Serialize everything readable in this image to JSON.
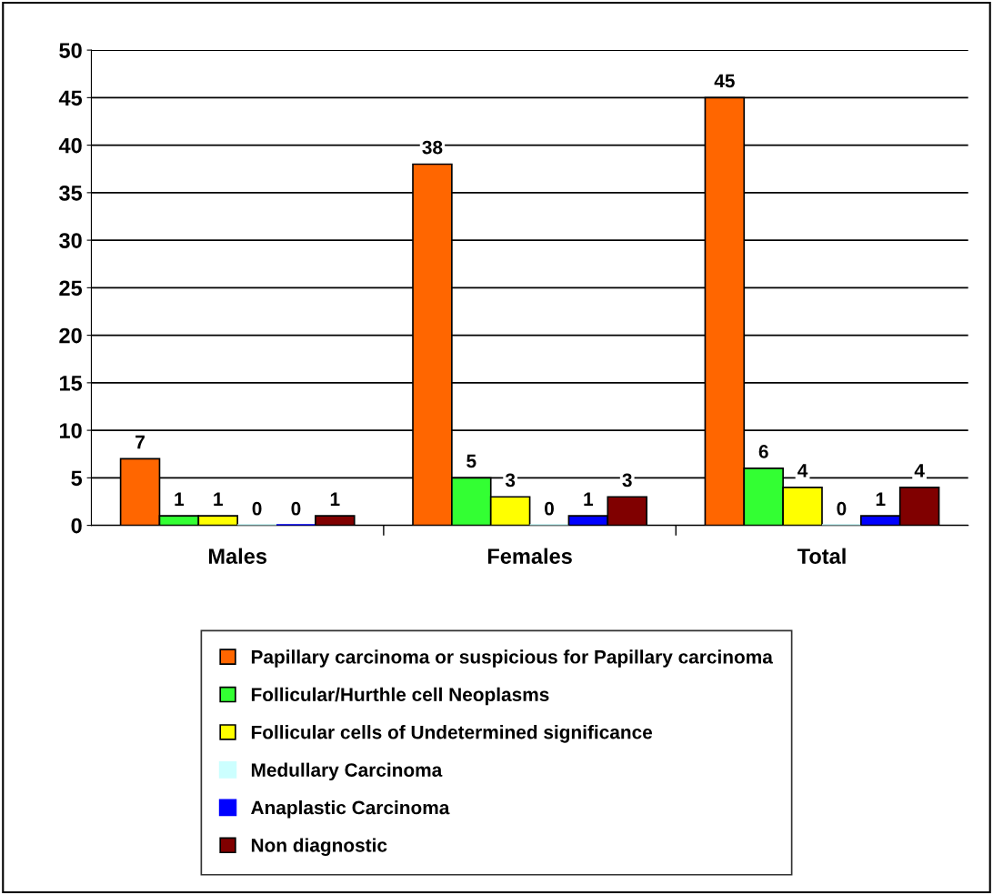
{
  "chart_data": {
    "type": "bar",
    "categories": [
      "Males",
      "Females",
      "Total"
    ],
    "series": [
      {
        "name": "Papillary carcinoma or suspicious for Papillary carcinoma",
        "color": "#ff6600",
        "values": [
          7,
          38,
          45
        ]
      },
      {
        "name": "Follicular/Hurthle cell Neoplasms",
        "color": "#33ff33",
        "values": [
          1,
          5,
          6
        ]
      },
      {
        "name": "Follicular cells of Undetermined significance",
        "color": "#ffff00",
        "values": [
          1,
          3,
          4
        ]
      },
      {
        "name": "Medullary Carcinoma",
        "color": "#ccffff",
        "values": [
          0,
          0,
          0
        ]
      },
      {
        "name": "Anaplastic Carcinoma",
        "color": "#0000ff",
        "values": [
          0,
          1,
          1
        ]
      },
      {
        "name": "Non diagnostic",
        "color": "#800000",
        "values": [
          1,
          3,
          4
        ]
      }
    ],
    "ylim": [
      0,
      50
    ],
    "yticks": [
      0,
      5,
      10,
      15,
      20,
      25,
      30,
      35,
      40,
      45,
      50
    ],
    "grid": "y",
    "legend": "bottom",
    "data_labels": true
  }
}
